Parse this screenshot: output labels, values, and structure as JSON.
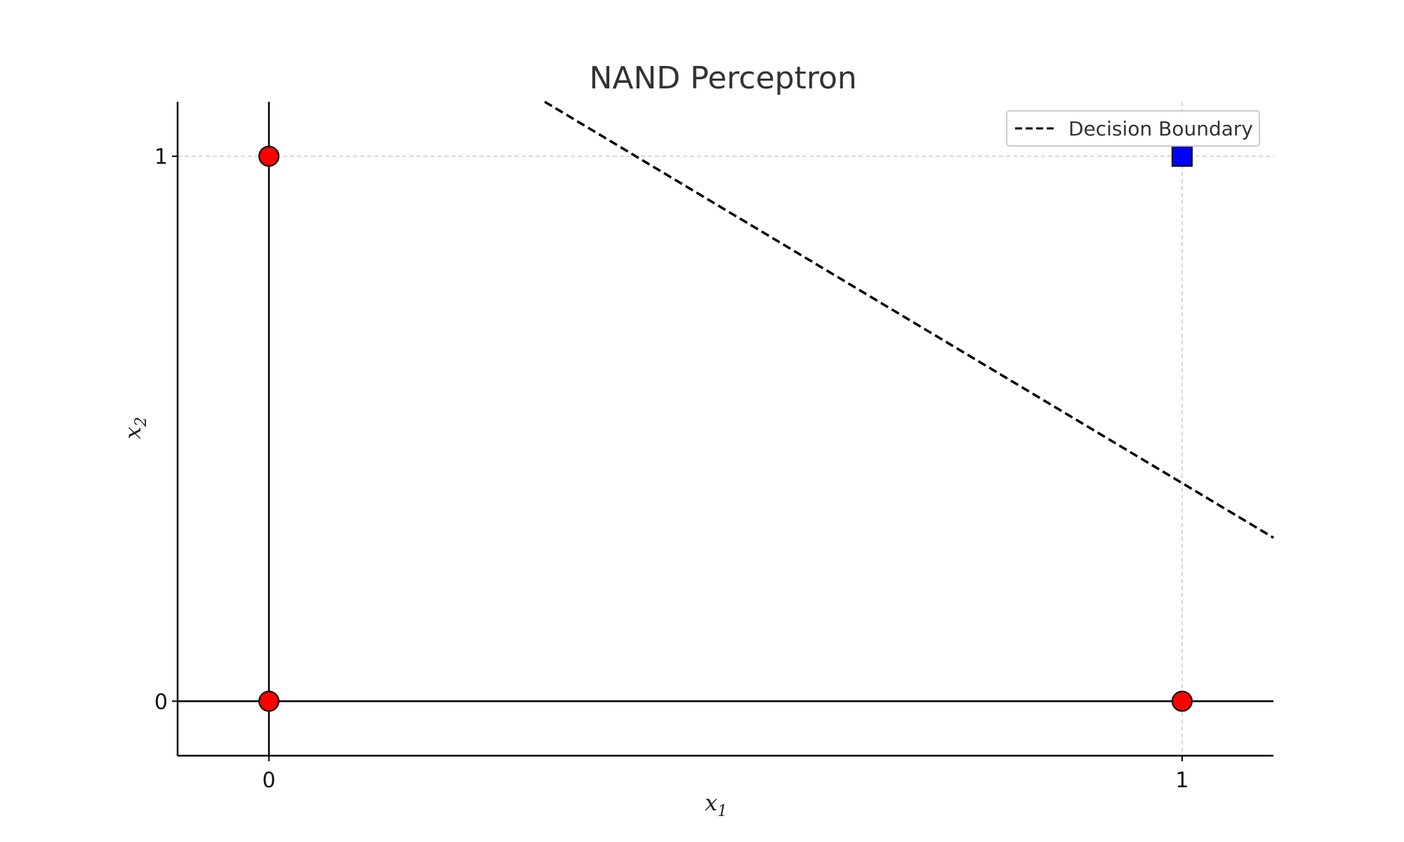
{
  "chart_data": {
    "type": "scatter",
    "title": "NAND Perceptron",
    "xlabel": {
      "base": "x",
      "sub": "1"
    },
    "ylabel": {
      "base": "x",
      "sub": "2"
    },
    "xlim": [
      -0.1,
      1.1
    ],
    "ylim": [
      -0.1,
      1.1
    ],
    "xticks": [
      0,
      1
    ],
    "yticks": [
      0,
      1
    ],
    "grid": true,
    "legend": {
      "position": "top-right",
      "entries": [
        "Decision Boundary"
      ]
    },
    "points": [
      {
        "x": 0,
        "y": 0,
        "class": 1,
        "marker": "circle"
      },
      {
        "x": 0,
        "y": 1,
        "class": 1,
        "marker": "circle"
      },
      {
        "x": 1,
        "y": 0,
        "class": 1,
        "marker": "circle"
      },
      {
        "x": 1,
        "y": 1,
        "class": 0,
        "marker": "square"
      }
    ],
    "decision_boundary": {
      "name": "Decision Boundary",
      "style": "dashed",
      "x": [
        0.302,
        1.1
      ],
      "y": [
        1.1,
        0.3
      ]
    },
    "colors": {
      "class_1": "#ff0000",
      "class_0": "#0000ff",
      "boundary": "#000000",
      "axes": "#000000",
      "grid": "#cccccc"
    }
  }
}
